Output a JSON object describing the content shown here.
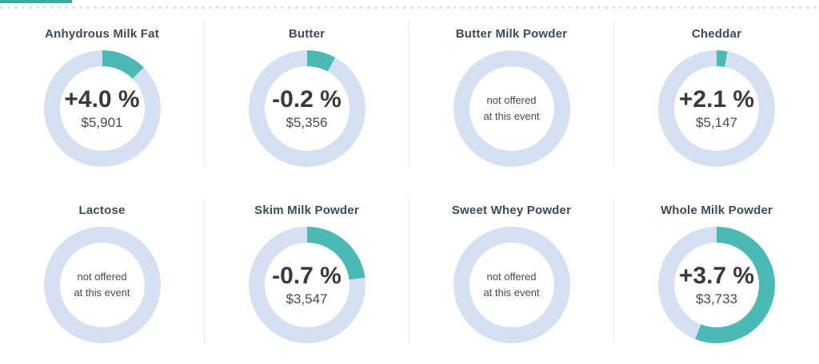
{
  "chart_data": {
    "type": "pie",
    "subtype": "donut-kpi-grid",
    "title": "",
    "legend": "none",
    "colors": {
      "accent_teal": "#4bb9b6",
      "ring_light_blue": "#d5e1f3",
      "top_accent_teal": "#3fa8a4",
      "title_color": "#3b4c5d"
    },
    "items": [
      {
        "title": "Anhydrous Milk Fat",
        "offered": true,
        "change_label": "+4.0 %",
        "change_percent": 4.0,
        "price_label": "$5,901",
        "price_usd": 5901,
        "arc_fraction": 0.125
      },
      {
        "title": "Butter",
        "offered": true,
        "change_label": "-0.2 %",
        "change_percent": -0.2,
        "price_label": "$5,356",
        "price_usd": 5356,
        "arc_fraction": 0.08
      },
      {
        "title": "Butter Milk Powder",
        "offered": false,
        "note_line1": "not offered",
        "note_line2": "at this event",
        "arc_fraction": 0
      },
      {
        "title": "Cheddar",
        "offered": true,
        "change_label": "+2.1 %",
        "change_percent": 2.1,
        "price_label": "$5,147",
        "price_usd": 5147,
        "arc_fraction": 0.03
      },
      {
        "title": "Lactose",
        "offered": false,
        "note_line1": "not offered",
        "note_line2": "at this event",
        "arc_fraction": 0
      },
      {
        "title": "Skim Milk Powder",
        "offered": true,
        "change_label": "-0.7 %",
        "change_percent": -0.7,
        "price_label": "$3,547",
        "price_usd": 3547,
        "arc_fraction": 0.23
      },
      {
        "title": "Sweet Whey Powder",
        "offered": false,
        "note_line1": "not offered",
        "note_line2": "at this event",
        "arc_fraction": 0
      },
      {
        "title": "Whole Milk Powder",
        "offered": true,
        "change_label": "+3.7 %",
        "change_percent": 3.7,
        "price_label": "$3,733",
        "price_usd": 3733,
        "arc_fraction": 0.56
      }
    ]
  }
}
